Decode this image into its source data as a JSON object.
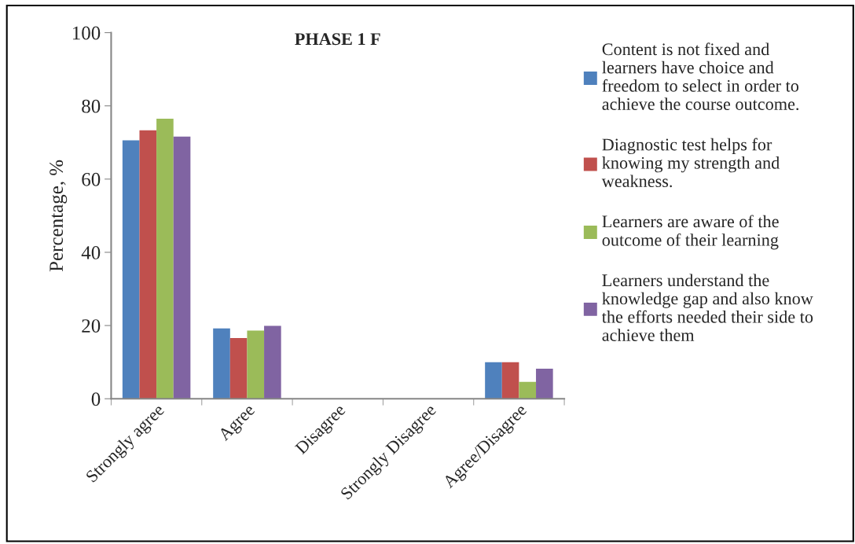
{
  "chart_data": {
    "type": "bar",
    "title": "PHASE 1 F",
    "ylabel": "Percentage, %",
    "categories": [
      "Strongly agree",
      "Agree",
      "Disagree",
      "Strongly Disagree",
      "Agree/Disagree"
    ],
    "series": [
      {
        "name": "Content is not fixed and learners have choice and freedom to select in order to achieve the course outcome.",
        "color": "#4f81bd",
        "values": [
          70.6,
          19.2,
          0,
          0,
          10.0
        ]
      },
      {
        "name": "Diagnostic test helps for knowing my strength and weakness.",
        "color": "#c0504d",
        "values": [
          73.3,
          16.6,
          0,
          0,
          10.0
        ]
      },
      {
        "name": "Learners are aware of the outcome of their learning",
        "color": "#9bbb59",
        "values": [
          76.5,
          18.6,
          0,
          0,
          4.6
        ]
      },
      {
        "name": "Learners understand the knowledge gap and also know the efforts needed their side to achieve them",
        "color": "#8064a2",
        "values": [
          71.6,
          19.9,
          0,
          0,
          8.2
        ]
      }
    ],
    "ylim": [
      0,
      100
    ],
    "yticks": [
      0,
      20,
      40,
      60,
      80,
      100
    ],
    "grid": false,
    "legend": "right"
  }
}
